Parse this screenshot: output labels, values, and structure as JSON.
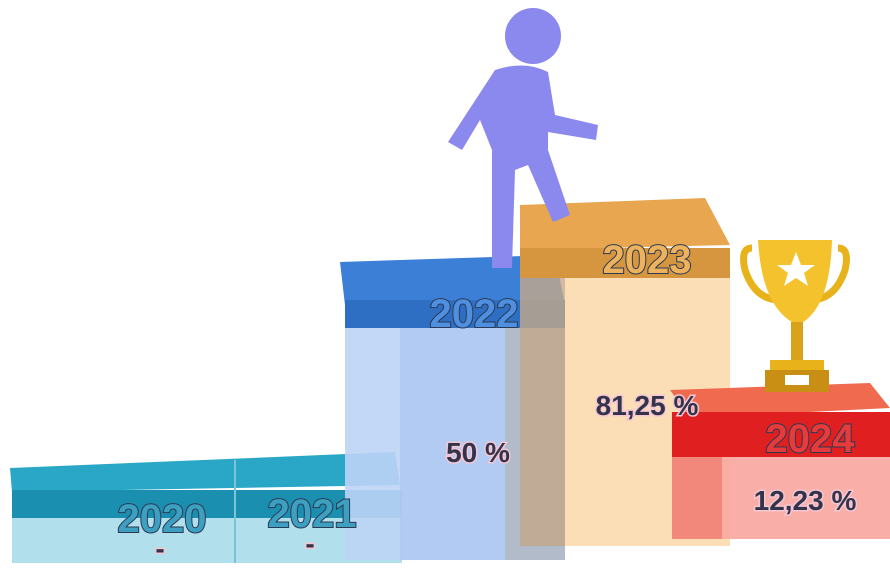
{
  "steps": [
    {
      "year": "2020",
      "value": "-"
    },
    {
      "year": "2021",
      "value": "-"
    },
    {
      "year": "2022",
      "value": "50 %"
    },
    {
      "year": "2023",
      "value": "81,25 %"
    },
    {
      "year": "2024",
      "value": "12,23 %"
    }
  ]
}
